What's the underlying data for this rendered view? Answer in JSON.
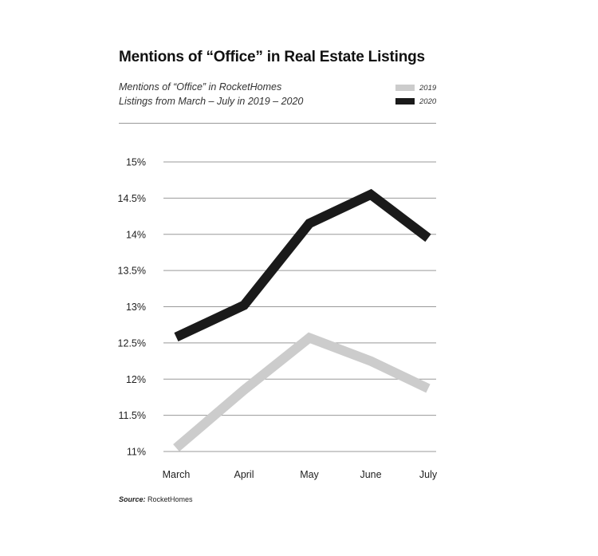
{
  "chart_data": {
    "type": "line",
    "title": "Mentions of “Office” in Real Estate Listings",
    "subtitle_lines": [
      "Mentions of “Office” in RocketHomes",
      "Listings from March – July in 2019 – 2020"
    ],
    "categories": [
      "March",
      "April",
      "May",
      "June",
      "July"
    ],
    "series": [
      {
        "name": "2019",
        "color": "#cccccc",
        "values": [
          11.05,
          11.85,
          12.57,
          12.25,
          11.87
        ]
      },
      {
        "name": "2020",
        "color": "#1a1a1a",
        "values": [
          12.58,
          13.02,
          14.15,
          14.55,
          13.95
        ]
      }
    ],
    "yticks": [
      11,
      11.5,
      12,
      12.5,
      13,
      13.5,
      14,
      14.5,
      15
    ],
    "ytick_labels": [
      "11%",
      "11.5%",
      "12%",
      "12.5%",
      "13%",
      "13.5%",
      "14%",
      "14.5%",
      "15%"
    ],
    "ylim": [
      11,
      15
    ],
    "xlabel": "",
    "ylabel": "",
    "grid": true,
    "legend_position": "top-right"
  },
  "source": {
    "label": "Source:",
    "value": "RocketHomes"
  }
}
